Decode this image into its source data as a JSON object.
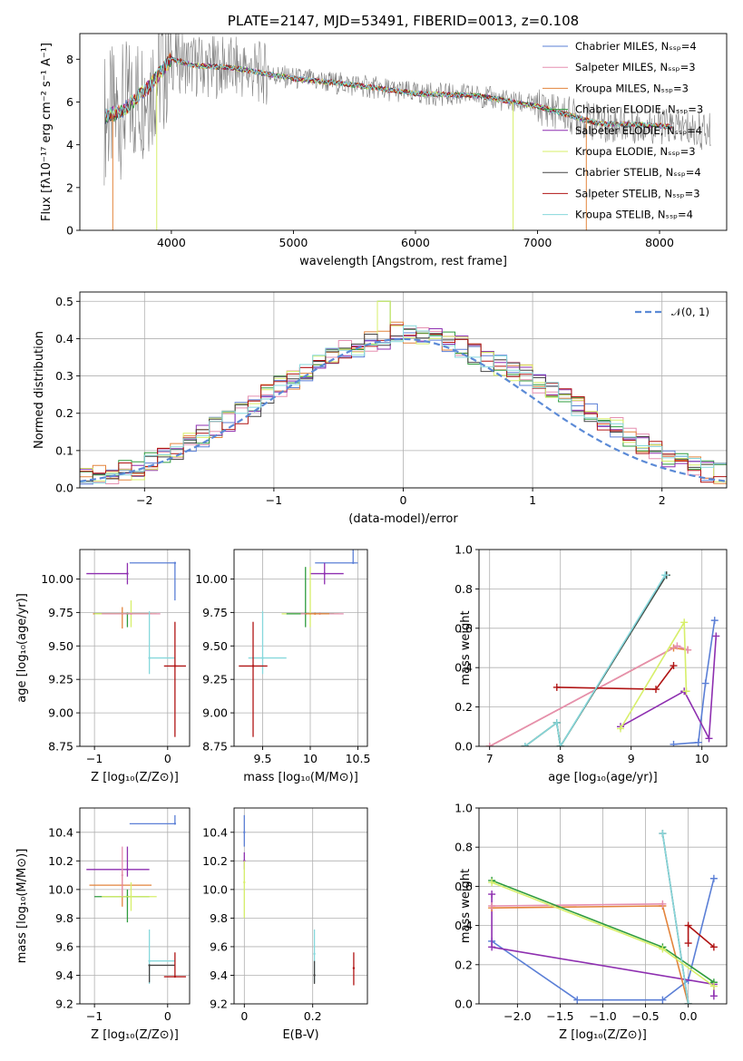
{
  "chart_data": [
    {
      "type": "line",
      "title": "PLATE=2147, MJD=53491, FIBERID=0013, z=0.108",
      "xlabel": "wavelength [Angstrom, rest frame]",
      "ylabel": "Flux [fλ10⁻¹⁷ erg cm⁻² s⁻¹ A⁻¹]",
      "xlim": [
        3250,
        8550
      ],
      "ylim": [
        0,
        9.2
      ],
      "xticks": [
        4000,
        5000,
        6000,
        7000,
        8000
      ],
      "yticks": [
        0,
        2,
        4,
        6,
        8
      ],
      "grid": false,
      "legend_position": "right",
      "series": [
        {
          "name": "Chabrier MILES, Nₛₛₚ=4",
          "color": "#5b7fd6"
        },
        {
          "name": "Salpeter MILES, Nₛₛₚ=3",
          "color": "#e58fb0"
        },
        {
          "name": "Kroupa MILES, Nₛₛₚ=3",
          "color": "#e3843c"
        },
        {
          "name": "Chabrier ELODIE, Nₛₛₚ=3",
          "color": "#2f9c3e"
        },
        {
          "name": "Salpeter ELODIE, Nₛₛₚ=4",
          "color": "#8e2fb0"
        },
        {
          "name": "Kroupa ELODIE, Nₛₛₚ=3",
          "color": "#d7ef6a"
        },
        {
          "name": "Chabrier STELIB, Nₛₛₚ=4",
          "color": "#444444"
        },
        {
          "name": "Salpeter STELIB, Nₛₛₚ=3",
          "color": "#b01414"
        },
        {
          "name": "Kroupa STELIB, Nₛₛₚ=4",
          "color": "#86d8dc"
        }
      ],
      "continuum": {
        "x": [
          3450,
          3600,
          3800,
          4000,
          4200,
          4500,
          5000,
          5500,
          6000,
          6500,
          7000,
          7500,
          8000,
          8400
        ],
        "y": [
          5.3,
          5.6,
          6.6,
          8.0,
          7.7,
          7.6,
          7.1,
          6.8,
          6.4,
          6.3,
          5.8,
          5.0,
          4.9,
          4.6
        ]
      },
      "data_color": "#808080"
    },
    {
      "type": "line",
      "xlabel": "(data-model)/error",
      "ylabel": "Normed distribution",
      "xlim": [
        -2.5,
        2.5
      ],
      "ylim": [
        0,
        0.525
      ],
      "xticks": [
        -2,
        -1,
        0,
        1,
        2
      ],
      "yticks": [
        0.0,
        0.1,
        0.2,
        0.3,
        0.4,
        0.5
      ],
      "grid": true,
      "legend_position": "top-right",
      "legend_label": "𝒩(0, 1)",
      "bin_width": 0.1,
      "histogram_shape": [
        0.03,
        0.035,
        0.04,
        0.045,
        0.05,
        0.07,
        0.09,
        0.1,
        0.12,
        0.14,
        0.16,
        0.18,
        0.2,
        0.22,
        0.25,
        0.27,
        0.29,
        0.31,
        0.33,
        0.35,
        0.37,
        0.38,
        0.39,
        0.4,
        0.42,
        0.41,
        0.41,
        0.4,
        0.39,
        0.38,
        0.36,
        0.34,
        0.33,
        0.31,
        0.3,
        0.28,
        0.26,
        0.24,
        0.22,
        0.2,
        0.18,
        0.16,
        0.14,
        0.12,
        0.1,
        0.08,
        0.065,
        0.055,
        0.045,
        0.04
      ]
    },
    {
      "type": "scatter",
      "xlabel": "Z [log₁₀(Z/Z⊙)]",
      "ylabel": "age  [log₁₀(age/yr)]",
      "xlim": [
        -1.2,
        0.3
      ],
      "ylim": [
        8.75,
        10.22
      ],
      "xticks": [
        -1,
        0
      ],
      "yticks": [
        8.75,
        9.0,
        9.25,
        9.5,
        9.75,
        10.0
      ],
      "ytick_labels": [
        "8.75",
        "9.00",
        "9.25",
        "9.50",
        "9.75",
        "10.00"
      ],
      "grid": true,
      "points": [
        {
          "x": -0.55,
          "y": 10.04,
          "xerr": [
            0.56,
            0.0
          ],
          "yerr": [
            0.08,
            0.08
          ],
          "color": "#8e2fb0"
        },
        {
          "x": 0.1,
          "y": 10.12,
          "xerr": [
            0.62,
            0.0
          ],
          "yerr": [
            0.28,
            0.0
          ],
          "color": "#5b7fd6"
        },
        {
          "x": -0.62,
          "y": 9.74,
          "xerr": [
            0.4,
            0.4
          ],
          "yerr": [
            0.11,
            0.05
          ],
          "color": "#e3843c"
        },
        {
          "x": -0.55,
          "y": 9.74,
          "xerr": [
            0.45,
            0.3
          ],
          "yerr": [
            0.1,
            0.0
          ],
          "color": "#2f9c3e"
        },
        {
          "x": -0.5,
          "y": 9.74,
          "xerr": [
            0.5,
            0.35
          ],
          "yerr": [
            0.1,
            0.1
          ],
          "color": "#d7ef6a"
        },
        {
          "x": -0.5,
          "y": 9.74,
          "xerr": [
            0.4,
            0.4
          ],
          "yerr": [
            0.0,
            0.0
          ],
          "color": "#e58fb0"
        },
        {
          "x": -0.25,
          "y": 9.41,
          "xerr": [
            0.0,
            0.35
          ],
          "yerr": [
            0.12,
            0.35
          ],
          "color": "#86d8dc"
        },
        {
          "x": 0.1,
          "y": 9.35,
          "xerr": [
            0.15,
            0.15
          ],
          "yerr": [
            0.53,
            0.33
          ],
          "color": "#b01414"
        }
      ]
    },
    {
      "type": "scatter",
      "xlabel": "mass [log₁₀(M/M⊙)]",
      "ylabel": "",
      "xlim": [
        9.2,
        10.6
      ],
      "ylim": [
        8.75,
        10.22
      ],
      "xticks": [
        9.5,
        10.0,
        10.5
      ],
      "yticks": [
        8.75,
        9.0,
        9.25,
        9.5,
        9.75,
        10.0
      ],
      "ytick_labels": [
        "8.75",
        "9.00",
        "9.25",
        "9.50",
        "9.75",
        "10.00"
      ],
      "grid": true,
      "points": [
        {
          "x": 10.45,
          "y": 10.12,
          "xerr": [
            0.4,
            0.05
          ],
          "yerr": [
            0.0,
            0.28
          ],
          "color": "#5b7fd6"
        },
        {
          "x": 10.15,
          "y": 10.04,
          "xerr": [
            0.15,
            0.2
          ],
          "yerr": [
            0.08,
            0.08
          ],
          "color": "#8e2fb0"
        },
        {
          "x": 10.0,
          "y": 9.74,
          "xerr": [
            0.3,
            0.3
          ],
          "yerr": [
            0.1,
            0.35
          ],
          "color": "#d7ef6a"
        },
        {
          "x": 9.95,
          "y": 9.74,
          "xerr": [
            0.2,
            0.3
          ],
          "yerr": [
            0.1,
            0.35
          ],
          "color": "#2f9c3e"
        },
        {
          "x": 10.1,
          "y": 9.74,
          "xerr": [
            0.2,
            0.25
          ],
          "yerr": [
            0.0,
            0.0
          ],
          "color": "#e58fb0"
        },
        {
          "x": 10.05,
          "y": 9.74,
          "xerr": [
            0.1,
            0.15
          ],
          "yerr": [
            0.0,
            0.0
          ],
          "color": "#e3843c"
        },
        {
          "x": 9.5,
          "y": 9.41,
          "xerr": [
            0.15,
            0.25
          ],
          "yerr": [
            0.12,
            0.35
          ],
          "color": "#86d8dc"
        },
        {
          "x": 9.4,
          "y": 9.35,
          "xerr": [
            0.15,
            0.15
          ],
          "yerr": [
            0.53,
            0.33
          ],
          "color": "#b01414"
        }
      ]
    },
    {
      "type": "line",
      "xlabel": "age  [log₁₀(age/yr)]",
      "ylabel": "mass weight",
      "xlim": [
        6.85,
        10.35
      ],
      "ylim": [
        0,
        1.0
      ],
      "xticks": [
        7,
        8,
        9,
        10
      ],
      "yticks": [
        0.0,
        0.2,
        0.4,
        0.6,
        0.8,
        1.0
      ],
      "grid": true,
      "series": [
        {
          "color": "#5b7fd6",
          "points": [
            [
              9.6,
              0.01
            ],
            [
              9.95,
              0.02
            ],
            [
              10.05,
              0.32
            ],
            [
              10.18,
              0.64
            ]
          ]
        },
        {
          "color": "#8e2fb0",
          "points": [
            [
              8.85,
              0.1
            ],
            [
              9.75,
              0.28
            ],
            [
              10.1,
              0.04
            ],
            [
              10.2,
              0.56
            ]
          ]
        },
        {
          "color": "#e3843c",
          "points": [
            [
              7.0,
              0.0
            ],
            [
              9.6,
              0.5
            ],
            [
              9.8,
              0.49
            ]
          ]
        },
        {
          "color": "#e58fb0",
          "points": [
            [
              7.0,
              0.0
            ],
            [
              9.65,
              0.51
            ],
            [
              9.8,
              0.49
            ]
          ]
        },
        {
          "color": "#b01414",
          "points": [
            [
              7.95,
              0.3
            ],
            [
              9.35,
              0.29
            ],
            [
              9.6,
              0.41
            ]
          ]
        },
        {
          "color": "#2f9c3e",
          "points": [
            [
              7.5,
              0.0
            ],
            [
              7.95,
              0.12
            ],
            [
              8.0,
              0.0
            ],
            [
              9.5,
              0.87
            ]
          ]
        },
        {
          "color": "#444444",
          "points": [
            [
              7.5,
              0.0
            ],
            [
              7.95,
              0.12
            ],
            [
              8.0,
              0.0
            ],
            [
              9.5,
              0.87
            ]
          ]
        },
        {
          "color": "#86d8dc",
          "points": [
            [
              7.5,
              0.0
            ],
            [
              7.95,
              0.12
            ],
            [
              8.0,
              0.0
            ],
            [
              9.48,
              0.87
            ]
          ]
        },
        {
          "color": "#d7ef6a",
          "points": [
            [
              8.85,
              0.09
            ],
            [
              9.75,
              0.63
            ],
            [
              9.78,
              0.28
            ]
          ]
        }
      ]
    },
    {
      "type": "scatter",
      "xlabel": "Z [log₁₀(Z/Z⊙)]",
      "ylabel": "mass [log₁₀(M/M⊙)]",
      "xlim": [
        -1.2,
        0.3
      ],
      "ylim": [
        9.2,
        10.57
      ],
      "xticks": [
        -1,
        0
      ],
      "yticks": [
        9.2,
        9.4,
        9.6,
        9.8,
        10.0,
        10.2,
        10.4
      ],
      "ytick_labels": [
        "9.2",
        "9.4",
        "9.6",
        "9.8",
        "10.0",
        "10.2",
        "10.4"
      ],
      "grid": true,
      "points": [
        {
          "x": 0.1,
          "y": 10.46,
          "xerr": [
            0.62,
            0.0
          ],
          "yerr": [
            0.0,
            0.06
          ],
          "color": "#5b7fd6"
        },
        {
          "x": -0.55,
          "y": 10.14,
          "xerr": [
            0.56,
            0.3
          ],
          "yerr": [
            0.05,
            0.16
          ],
          "color": "#8e2fb0"
        },
        {
          "x": -0.62,
          "y": 10.03,
          "xerr": [
            0.45,
            0.4
          ],
          "yerr": [
            0.15,
            0.1
          ],
          "color": "#e3843c"
        },
        {
          "x": -0.55,
          "y": 9.95,
          "xerr": [
            0.45,
            0.3
          ],
          "yerr": [
            0.18,
            0.05
          ],
          "color": "#2f9c3e"
        },
        {
          "x": -0.5,
          "y": 9.95,
          "xerr": [
            0.4,
            0.35
          ],
          "yerr": [
            0.1,
            0.1
          ],
          "color": "#d7ef6a"
        },
        {
          "x": -0.62,
          "y": 10.1,
          "xerr": [
            0.0,
            0.0
          ],
          "yerr": [
            0.15,
            0.2
          ],
          "color": "#e58fb0"
        },
        {
          "x": -0.25,
          "y": 9.5,
          "xerr": [
            0.0,
            0.35
          ],
          "yerr": [
            0.16,
            0.22
          ],
          "color": "#86d8dc"
        },
        {
          "x": -0.25,
          "y": 9.47,
          "xerr": [
            0.0,
            0.35
          ],
          "yerr": [
            0.12,
            0.0
          ],
          "color": "#444444"
        },
        {
          "x": 0.1,
          "y": 9.39,
          "xerr": [
            0.15,
            0.15
          ],
          "yerr": [
            0.0,
            0.17
          ],
          "color": "#b01414"
        }
      ]
    },
    {
      "type": "scatter",
      "xlabel": "E(B-V)",
      "ylabel": "",
      "xlim": [
        -0.03,
        0.36
      ],
      "ylim": [
        9.2,
        10.57
      ],
      "xticks": [
        0.0,
        0.2
      ],
      "yticks": [
        9.2,
        9.4,
        9.6,
        9.8,
        10.0,
        10.2,
        10.4
      ],
      "ytick_labels": [
        "9.2",
        "9.4",
        "9.6",
        "9.8",
        "10.0",
        "10.2",
        "10.4"
      ],
      "grid": true,
      "points": [
        {
          "x": 0.0,
          "y": 10.4,
          "xerr": [
            0,
            0
          ],
          "yerr": [
            0.1,
            0.12
          ],
          "color": "#5b7fd6"
        },
        {
          "x": 0.0,
          "y": 10.2,
          "xerr": [
            0,
            0
          ],
          "yerr": [
            0.06,
            0.06
          ],
          "color": "#8e2fb0"
        },
        {
          "x": 0.0,
          "y": 10.05,
          "xerr": [
            0,
            0
          ],
          "yerr": [
            0.25,
            0.15
          ],
          "color": "#d7ef6a"
        },
        {
          "x": 0.205,
          "y": 9.55,
          "xerr": [
            0,
            0
          ],
          "yerr": [
            0.2,
            0.17
          ],
          "color": "#86d8dc"
        },
        {
          "x": 0.205,
          "y": 9.4,
          "xerr": [
            0,
            0
          ],
          "yerr": [
            0.06,
            0.1
          ],
          "color": "#444444"
        },
        {
          "x": 0.32,
          "y": 9.45,
          "xerr": [
            0,
            0
          ],
          "yerr": [
            0.12,
            0.11
          ],
          "color": "#b01414"
        }
      ]
    },
    {
      "type": "line",
      "xlabel": "Z [log₁₀(Z/Z⊙)]",
      "ylabel": "mass weight",
      "xlim": [
        -2.45,
        0.45
      ],
      "ylim": [
        0,
        1.0
      ],
      "xticks": [
        -2.0,
        -1.5,
        -1.0,
        -0.5,
        0.0
      ],
      "xtick_labels": [
        "−2.0",
        "−1.5",
        "−1.0",
        "−0.5",
        "0.0"
      ],
      "yticks": [
        0.0,
        0.2,
        0.4,
        0.6,
        0.8,
        1.0
      ],
      "grid": true,
      "series": [
        {
          "color": "#5b7fd6",
          "points": [
            [
              -2.3,
              0.32
            ],
            [
              -1.3,
              0.02
            ],
            [
              -0.3,
              0.02
            ],
            [
              0.0,
              0.12
            ],
            [
              0.3,
              0.64
            ]
          ]
        },
        {
          "color": "#8e2fb0",
          "points": [
            [
              -2.3,
              0.56
            ],
            [
              -2.3,
              0.29
            ],
            [
              0.3,
              0.1
            ],
            [
              0.3,
              0.04
            ]
          ]
        },
        {
          "color": "#e3843c",
          "points": [
            [
              -2.3,
              0.49
            ],
            [
              -0.3,
              0.5
            ],
            [
              0.0,
              0.0
            ]
          ]
        },
        {
          "color": "#e58fb0",
          "points": [
            [
              -2.3,
              0.5
            ],
            [
              -0.3,
              0.51
            ]
          ]
        },
        {
          "color": "#b01414",
          "points": [
            [
              0.0,
              0.31
            ],
            [
              0.0,
              0.4
            ],
            [
              0.3,
              0.29
            ]
          ]
        },
        {
          "color": "#2f9c3e",
          "points": [
            [
              -2.3,
              0.63
            ],
            [
              -0.3,
              0.29
            ],
            [
              0.3,
              0.11
            ]
          ]
        },
        {
          "color": "#444444",
          "points": [
            [
              -0.3,
              0.87
            ],
            [
              0.0,
              0.0
            ]
          ]
        },
        {
          "color": "#86d8dc",
          "points": [
            [
              -0.3,
              0.87
            ],
            [
              0.0,
              0.0
            ]
          ]
        },
        {
          "color": "#d7ef6a",
          "points": [
            [
              -2.3,
              0.62
            ],
            [
              -0.3,
              0.28
            ],
            [
              0.3,
              0.09
            ]
          ]
        }
      ]
    }
  ]
}
